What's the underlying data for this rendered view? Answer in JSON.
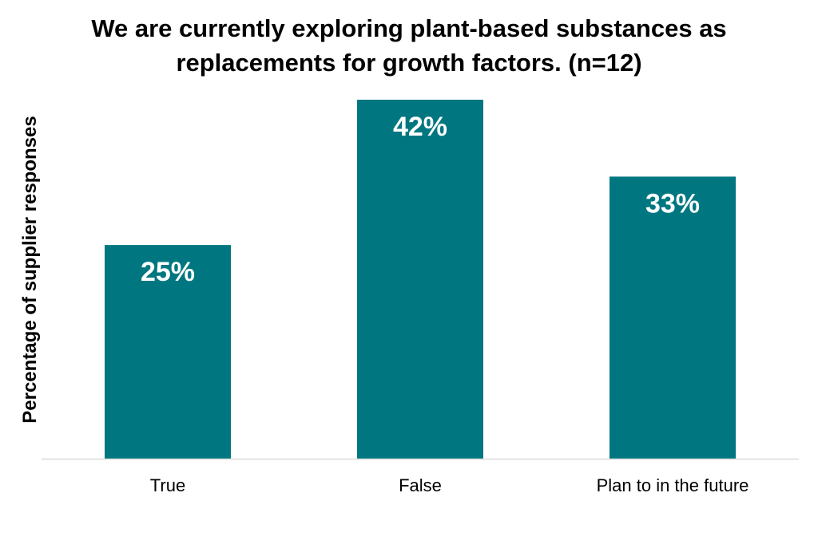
{
  "chart_data": {
    "type": "bar",
    "title": [
      "We are currently exploring plant-based substances as",
      "replacements for growth factors. (n=12)"
    ],
    "ylabel": "Percentage of supplier responses",
    "xlabel": "",
    "categories": [
      "True",
      "False",
      "Plan to in the future"
    ],
    "values": [
      25,
      42,
      33
    ],
    "data_labels": [
      "25%",
      "42%",
      "33%"
    ],
    "ylim": [
      0,
      42
    ],
    "grid": false,
    "legend": "none",
    "colors": {
      "bar": "#007780",
      "baseline": "#d9d9d9",
      "label_inside": "#ffffff"
    }
  }
}
